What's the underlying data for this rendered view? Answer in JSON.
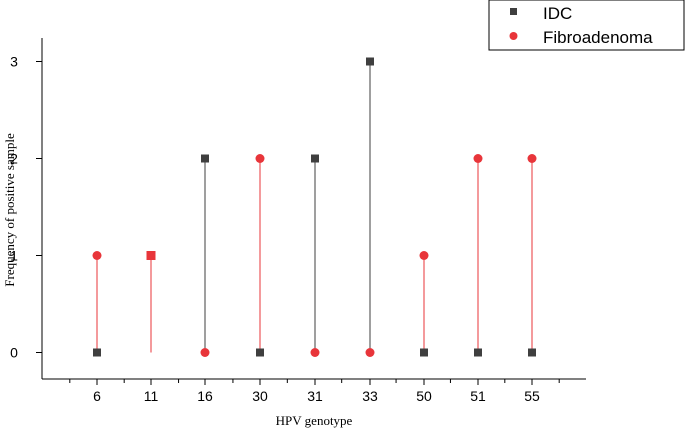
{
  "chart_data": {
    "type": "scatter",
    "style": "drop-line",
    "title": "",
    "xlabel": "HPV genotype",
    "ylabel": "Frequency of positive sample",
    "categories": [
      "6",
      "11",
      "16",
      "30",
      "31",
      "33",
      "50",
      "51",
      "55"
    ],
    "yticks": [
      "0",
      "1",
      "2",
      "3"
    ],
    "ylim": [
      -0.25,
      3.2
    ],
    "grid": false,
    "legend_position": "top-right",
    "series": [
      {
        "name": "IDC",
        "marker": "square",
        "color": "#3f3f3f",
        "values": [
          0,
          1,
          2,
          0,
          2,
          3,
          0,
          0,
          0
        ]
      },
      {
        "name": "Fibroadenoma",
        "marker": "circle",
        "color": "#e8353a",
        "values": [
          1,
          1,
          0,
          2,
          0,
          0,
          1,
          2,
          2
        ]
      }
    ]
  }
}
